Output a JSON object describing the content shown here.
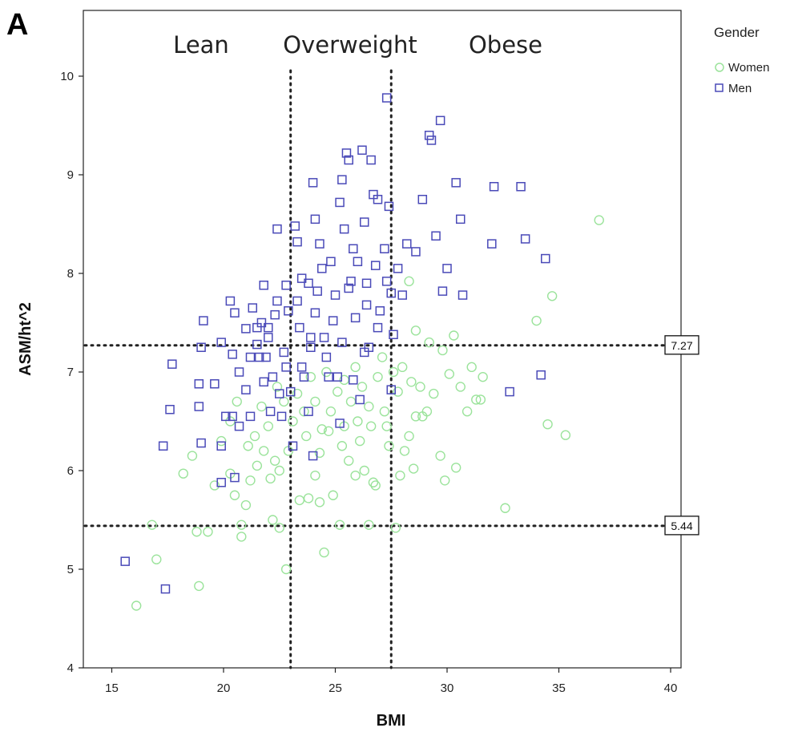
{
  "panel_label": "A",
  "chart_data": {
    "type": "scatter",
    "xlabel": "BMI",
    "ylabel": "ASM/ht^2",
    "xlim": [
      13.5,
      40.5
    ],
    "ylim": [
      4,
      10.7
    ],
    "x_ticks": [
      15,
      20,
      25,
      30,
      35,
      40
    ],
    "y_ticks": [
      4,
      5,
      6,
      7,
      8,
      9,
      10
    ],
    "grid": false,
    "legend": {
      "title": "Gender",
      "position": "top-right",
      "entries": [
        {
          "label": "Women",
          "marker": "circle",
          "color": "#9be39b"
        },
        {
          "label": "Men",
          "marker": "square",
          "color": "#4a4ab8"
        }
      ]
    },
    "region_labels": [
      "Lean",
      "Overweight",
      "Obese"
    ],
    "vlines": [
      23,
      27.5
    ],
    "hlines": [
      {
        "y": 7.27,
        "label": "7.27"
      },
      {
        "y": 5.44,
        "label": "5.44"
      }
    ],
    "series": [
      {
        "name": "Women",
        "marker": "circle",
        "color": "#9be39b",
        "points": [
          [
            16.1,
            4.63
          ],
          [
            17,
            5.1
          ],
          [
            16.8,
            5.45
          ],
          [
            18.9,
            4.83
          ],
          [
            18.8,
            5.38
          ],
          [
            19.3,
            5.38
          ],
          [
            18.2,
            5.97
          ],
          [
            18.6,
            6.15
          ],
          [
            19.6,
            5.85
          ],
          [
            19.9,
            6.3
          ],
          [
            20.3,
            5.97
          ],
          [
            20.3,
            6.5
          ],
          [
            20.6,
            6.7
          ],
          [
            20.5,
            5.75
          ],
          [
            20.8,
            5.45
          ],
          [
            20.8,
            5.33
          ],
          [
            21,
            5.65
          ],
          [
            21.2,
            5.9
          ],
          [
            21.5,
            6.05
          ],
          [
            21.8,
            6.2
          ],
          [
            21.1,
            6.25
          ],
          [
            22.1,
            5.92
          ],
          [
            22.3,
            6.1
          ],
          [
            22.5,
            5.42
          ],
          [
            22.2,
            5.5
          ],
          [
            22.8,
            5.0
          ],
          [
            22.5,
            6.0
          ],
          [
            22.9,
            6.2
          ],
          [
            23.4,
            5.7
          ],
          [
            23.8,
            5.72
          ],
          [
            24.1,
            5.95
          ],
          [
            24.3,
            5.68
          ],
          [
            24.5,
            5.17
          ],
          [
            24.3,
            6.18
          ],
          [
            24.7,
            6.4
          ],
          [
            24.9,
            5.75
          ],
          [
            25.2,
            5.45
          ],
          [
            25.4,
            6.45
          ],
          [
            25.6,
            6.1
          ],
          [
            25.9,
            5.95
          ],
          [
            26.1,
            6.3
          ],
          [
            26.3,
            6.0
          ],
          [
            26.5,
            5.45
          ],
          [
            26.6,
            6.45
          ],
          [
            26.7,
            5.88
          ],
          [
            26.8,
            5.85
          ],
          [
            27.2,
            6.6
          ],
          [
            27.4,
            6.25
          ],
          [
            27.7,
            5.42
          ],
          [
            27.9,
            5.95
          ],
          [
            28.1,
            6.2
          ],
          [
            28.3,
            6.35
          ],
          [
            28.5,
            6.02
          ],
          [
            28.6,
            6.55
          ],
          [
            28.8,
            6.85
          ],
          [
            29.1,
            6.6
          ],
          [
            29.4,
            6.78
          ],
          [
            29.7,
            6.15
          ],
          [
            29.9,
            5.9
          ],
          [
            30.1,
            6.98
          ],
          [
            30.4,
            6.03
          ],
          [
            30.6,
            6.85
          ],
          [
            30.9,
            6.6
          ],
          [
            31.1,
            7.05
          ],
          [
            31.3,
            6.72
          ],
          [
            31.6,
            6.95
          ],
          [
            31.5,
            6.72
          ],
          [
            32.6,
            5.62
          ],
          [
            34.0,
            7.52
          ],
          [
            34.5,
            6.47
          ],
          [
            34.7,
            7.77
          ],
          [
            35.3,
            6.36
          ],
          [
            36.8,
            8.54
          ],
          [
            28.3,
            7.92
          ],
          [
            28.6,
            7.42
          ],
          [
            29.2,
            7.3
          ],
          [
            29.8,
            7.22
          ],
          [
            30.3,
            7.37
          ],
          [
            23.1,
            6.5
          ],
          [
            23.3,
            6.78
          ],
          [
            23.6,
            6.6
          ],
          [
            23.9,
            6.95
          ],
          [
            24.1,
            6.7
          ],
          [
            24.6,
            7.0
          ],
          [
            24.8,
            6.6
          ],
          [
            25.1,
            6.8
          ],
          [
            25.4,
            6.92
          ],
          [
            25.7,
            6.7
          ],
          [
            25.9,
            7.05
          ],
          [
            26.2,
            6.85
          ],
          [
            26.5,
            6.65
          ],
          [
            26.9,
            6.95
          ],
          [
            27.1,
            7.15
          ],
          [
            27.6,
            7.0
          ],
          [
            27.8,
            6.8
          ],
          [
            28.0,
            7.05
          ],
          [
            28.4,
            6.9
          ],
          [
            22.0,
            6.45
          ],
          [
            21.7,
            6.65
          ],
          [
            22.4,
            6.85
          ],
          [
            23.7,
            6.35
          ],
          [
            24.4,
            6.42
          ],
          [
            25.3,
            6.25
          ],
          [
            26.0,
            6.5
          ],
          [
            27.3,
            6.45
          ],
          [
            28.9,
            6.55
          ],
          [
            21.4,
            6.35
          ],
          [
            22.7,
            6.7
          ]
        ]
      },
      {
        "name": "Men",
        "marker": "square",
        "color": "#4a4ab8",
        "points": [
          [
            15.6,
            5.08
          ],
          [
            17.4,
            4.8
          ],
          [
            17.3,
            6.25
          ],
          [
            17.6,
            6.62
          ],
          [
            17.7,
            7.08
          ],
          [
            18.9,
            6.65
          ],
          [
            18.9,
            6.88
          ],
          [
            19.0,
            6.28
          ],
          [
            19.0,
            7.25
          ],
          [
            19.1,
            7.52
          ],
          [
            19.6,
            6.88
          ],
          [
            19.9,
            6.25
          ],
          [
            19.9,
            7.3
          ],
          [
            20.1,
            6.55
          ],
          [
            20.3,
            7.72
          ],
          [
            20.4,
            7.18
          ],
          [
            20.4,
            6.55
          ],
          [
            20.5,
            7.6
          ],
          [
            20.7,
            7.0
          ],
          [
            20.7,
            6.45
          ],
          [
            21.0,
            7.44
          ],
          [
            21.0,
            6.82
          ],
          [
            21.2,
            7.15
          ],
          [
            21.5,
            7.45
          ],
          [
            21.5,
            7.28
          ],
          [
            21.7,
            7.5
          ],
          [
            21.8,
            6.9
          ],
          [
            21.8,
            7.88
          ],
          [
            21.9,
            7.15
          ],
          [
            22.0,
            7.35
          ],
          [
            22.2,
            6.95
          ],
          [
            22.3,
            7.58
          ],
          [
            22.4,
            8.45
          ],
          [
            22.4,
            7.72
          ],
          [
            22.5,
            6.78
          ],
          [
            22.6,
            6.55
          ],
          [
            22.7,
            7.2
          ],
          [
            22.8,
            7.88
          ],
          [
            22.9,
            7.62
          ],
          [
            23.0,
            6.8
          ],
          [
            23.2,
            8.48
          ],
          [
            23.3,
            8.32
          ],
          [
            23.3,
            7.72
          ],
          [
            23.4,
            7.45
          ],
          [
            23.5,
            7.05
          ],
          [
            23.6,
            6.95
          ],
          [
            23.8,
            7.9
          ],
          [
            23.9,
            7.25
          ],
          [
            24.0,
            8.92
          ],
          [
            24.1,
            8.55
          ],
          [
            24.1,
            7.6
          ],
          [
            24.3,
            8.3
          ],
          [
            24.4,
            8.05
          ],
          [
            24.5,
            7.35
          ],
          [
            24.6,
            7.15
          ],
          [
            24.8,
            8.12
          ],
          [
            24.9,
            7.52
          ],
          [
            25.0,
            7.78
          ],
          [
            25.1,
            6.95
          ],
          [
            25.2,
            8.72
          ],
          [
            25.3,
            8.95
          ],
          [
            25.4,
            8.45
          ],
          [
            25.5,
            9.22
          ],
          [
            25.6,
            9.15
          ],
          [
            25.7,
            7.92
          ],
          [
            25.8,
            8.25
          ],
          [
            25.9,
            7.55
          ],
          [
            26.1,
            6.72
          ],
          [
            26.2,
            9.25
          ],
          [
            26.3,
            8.52
          ],
          [
            26.4,
            7.9
          ],
          [
            26.5,
            7.25
          ],
          [
            26.6,
            9.15
          ],
          [
            26.7,
            8.8
          ],
          [
            26.8,
            8.08
          ],
          [
            26.9,
            8.75
          ],
          [
            27.0,
            7.62
          ],
          [
            27.2,
            8.25
          ],
          [
            27.3,
            9.78
          ],
          [
            27.4,
            8.68
          ],
          [
            27.5,
            7.8
          ],
          [
            27.5,
            6.82
          ],
          [
            27.6,
            7.38
          ],
          [
            27.8,
            8.05
          ],
          [
            28.0,
            7.78
          ],
          [
            28.2,
            8.3
          ],
          [
            28.6,
            8.22
          ],
          [
            28.9,
            8.75
          ],
          [
            29.2,
            9.4
          ],
          [
            29.5,
            8.38
          ],
          [
            29.7,
            9.55
          ],
          [
            29.8,
            7.82
          ],
          [
            30.0,
            8.05
          ],
          [
            30.4,
            8.92
          ],
          [
            30.6,
            8.55
          ],
          [
            30.7,
            7.78
          ],
          [
            32.0,
            8.3
          ],
          [
            32.1,
            8.88
          ],
          [
            32.8,
            6.8
          ],
          [
            33.3,
            8.88
          ],
          [
            33.5,
            8.35
          ],
          [
            34.2,
            6.97
          ],
          [
            34.4,
            8.15
          ],
          [
            29.3,
            9.35
          ],
          [
            23.5,
            7.95
          ],
          [
            24.2,
            7.82
          ],
          [
            25.3,
            7.3
          ],
          [
            25.6,
            7.85
          ],
          [
            26.0,
            8.12
          ],
          [
            26.3,
            7.2
          ],
          [
            26.9,
            7.45
          ],
          [
            27.3,
            7.92
          ],
          [
            21.2,
            6.55
          ],
          [
            21.6,
            7.15
          ],
          [
            22.1,
            6.6
          ],
          [
            22.8,
            7.05
          ],
          [
            23.8,
            6.6
          ],
          [
            24.7,
            6.95
          ],
          [
            25.2,
            6.48
          ],
          [
            25.8,
            6.92
          ],
          [
            26.4,
            7.68
          ],
          [
            23.1,
            6.25
          ],
          [
            24.0,
            6.15
          ],
          [
            20.5,
            5.93
          ],
          [
            19.9,
            5.88
          ],
          [
            21.3,
            7.65
          ],
          [
            22.0,
            7.45
          ],
          [
            23.9,
            7.35
          ]
        ]
      }
    ]
  }
}
